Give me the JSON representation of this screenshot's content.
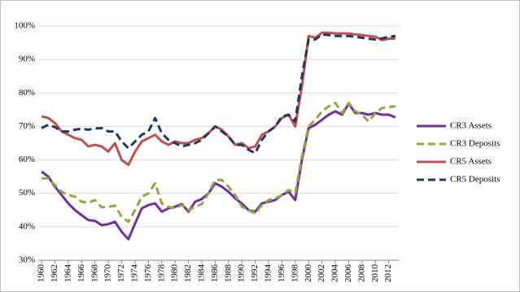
{
  "chart_data": {
    "type": "line",
    "x": [
      1960,
      1961,
      1962,
      1963,
      1964,
      1965,
      1966,
      1967,
      1968,
      1969,
      1970,
      1971,
      1972,
      1973,
      1974,
      1975,
      1976,
      1977,
      1978,
      1979,
      1980,
      1981,
      1982,
      1983,
      1984,
      1985,
      1986,
      1987,
      1988,
      1989,
      1990,
      1991,
      1992,
      1993,
      1994,
      1995,
      1996,
      1997,
      1998,
      1999,
      2000,
      2001,
      2002,
      2003,
      2004,
      2005,
      2006,
      2007,
      2008,
      2009,
      2010,
      2011,
      2012,
      2013
    ],
    "xlim": [
      1959.5,
      2013.5
    ],
    "xticks": [
      1960,
      1962,
      1964,
      1966,
      1968,
      1970,
      1972,
      1974,
      1976,
      1978,
      1980,
      1982,
      1984,
      1986,
      1988,
      1990,
      1992,
      1994,
      1996,
      1998,
      2000,
      2002,
      2004,
      2006,
      2008,
      2010,
      2012
    ],
    "ylim": [
      30,
      100
    ],
    "yticks": [
      {
        "value": 30,
        "label": "30%"
      },
      {
        "value": 40,
        "label": "40%"
      },
      {
        "value": 50,
        "label": "50%"
      },
      {
        "value": 60,
        "label": "60%"
      },
      {
        "value": 70,
        "label": "70%"
      },
      {
        "value": 80,
        "label": "80%"
      },
      {
        "value": 90,
        "label": "90%"
      },
      {
        "value": 100,
        "label": "100%"
      }
    ],
    "grid": true,
    "legend": "right",
    "series": [
      {
        "name": "CR3 Assets",
        "color": "#7030a0",
        "style": "solid",
        "values": [
          56.5,
          55,
          52,
          49.5,
          47,
          45,
          43.5,
          42,
          41.8,
          40.5,
          40.8,
          41.5,
          38.5,
          36.3,
          41,
          45.5,
          46.5,
          47,
          44.5,
          45.5,
          46,
          46.8,
          44.5,
          47.5,
          48.3,
          50,
          53,
          52,
          50.5,
          48.5,
          47,
          45,
          44.5,
          47,
          47.5,
          48,
          49.5,
          50.5,
          48,
          60,
          69.5,
          70.5,
          72,
          73.5,
          74.5,
          73.5,
          76.8,
          74,
          74,
          73.5,
          74,
          73.5,
          73.5,
          72.7
        ]
      },
      {
        "name": "CR3 Deposits",
        "color": "#8faa3c",
        "style": "dashed",
        "values": [
          54.5,
          54.5,
          52.5,
          50.5,
          49.5,
          49,
          47.5,
          47.2,
          48,
          45.8,
          46,
          46.3,
          43,
          41.5,
          45,
          49,
          50,
          53,
          47,
          46,
          45.5,
          46.5,
          45,
          46,
          46.8,
          50,
          54,
          54,
          52,
          49.5,
          46,
          45,
          44,
          46.5,
          48,
          48.5,
          49.5,
          51,
          50,
          61,
          70,
          72,
          74.5,
          76,
          77,
          74,
          77,
          74.5,
          73.5,
          71.5,
          74,
          75.5,
          75.8,
          76
        ]
      },
      {
        "name": "CR5 Assets",
        "color": "#c0504d",
        "style": "solid",
        "values": [
          73,
          72.5,
          71,
          68.5,
          67.5,
          66.5,
          66,
          64,
          64.5,
          64,
          62.5,
          65,
          60,
          58.5,
          62.5,
          65.5,
          66.5,
          67.5,
          65.5,
          64.5,
          65.5,
          65,
          65,
          66,
          66.5,
          68,
          70,
          69,
          67,
          64.5,
          65,
          63.5,
          64,
          67.5,
          68.5,
          70,
          72.5,
          73.5,
          70,
          82,
          97,
          96.5,
          98,
          98,
          97.8,
          97.8,
          97.8,
          97.5,
          97.3,
          97,
          96.8,
          95.8,
          96.2,
          96.3
        ]
      },
      {
        "name": "CR5 Deposits",
        "color": "#1f3864",
        "style": "dashed",
        "values": [
          69.5,
          70.5,
          69.8,
          68.5,
          68.5,
          69,
          69.3,
          69,
          69.4,
          69.5,
          68.5,
          68.5,
          65.5,
          63.5,
          65.5,
          67.5,
          68.5,
          72.5,
          68,
          66,
          65,
          64,
          64.5,
          65,
          66,
          68,
          70,
          68.5,
          67,
          64.5,
          64.5,
          63,
          62,
          66,
          68.5,
          70,
          73,
          73.5,
          71.5,
          85,
          96,
          96,
          97.5,
          97.3,
          97,
          97,
          97,
          96.8,
          96.5,
          96.2,
          96,
          96.3,
          96.8,
          97
        ]
      }
    ]
  }
}
